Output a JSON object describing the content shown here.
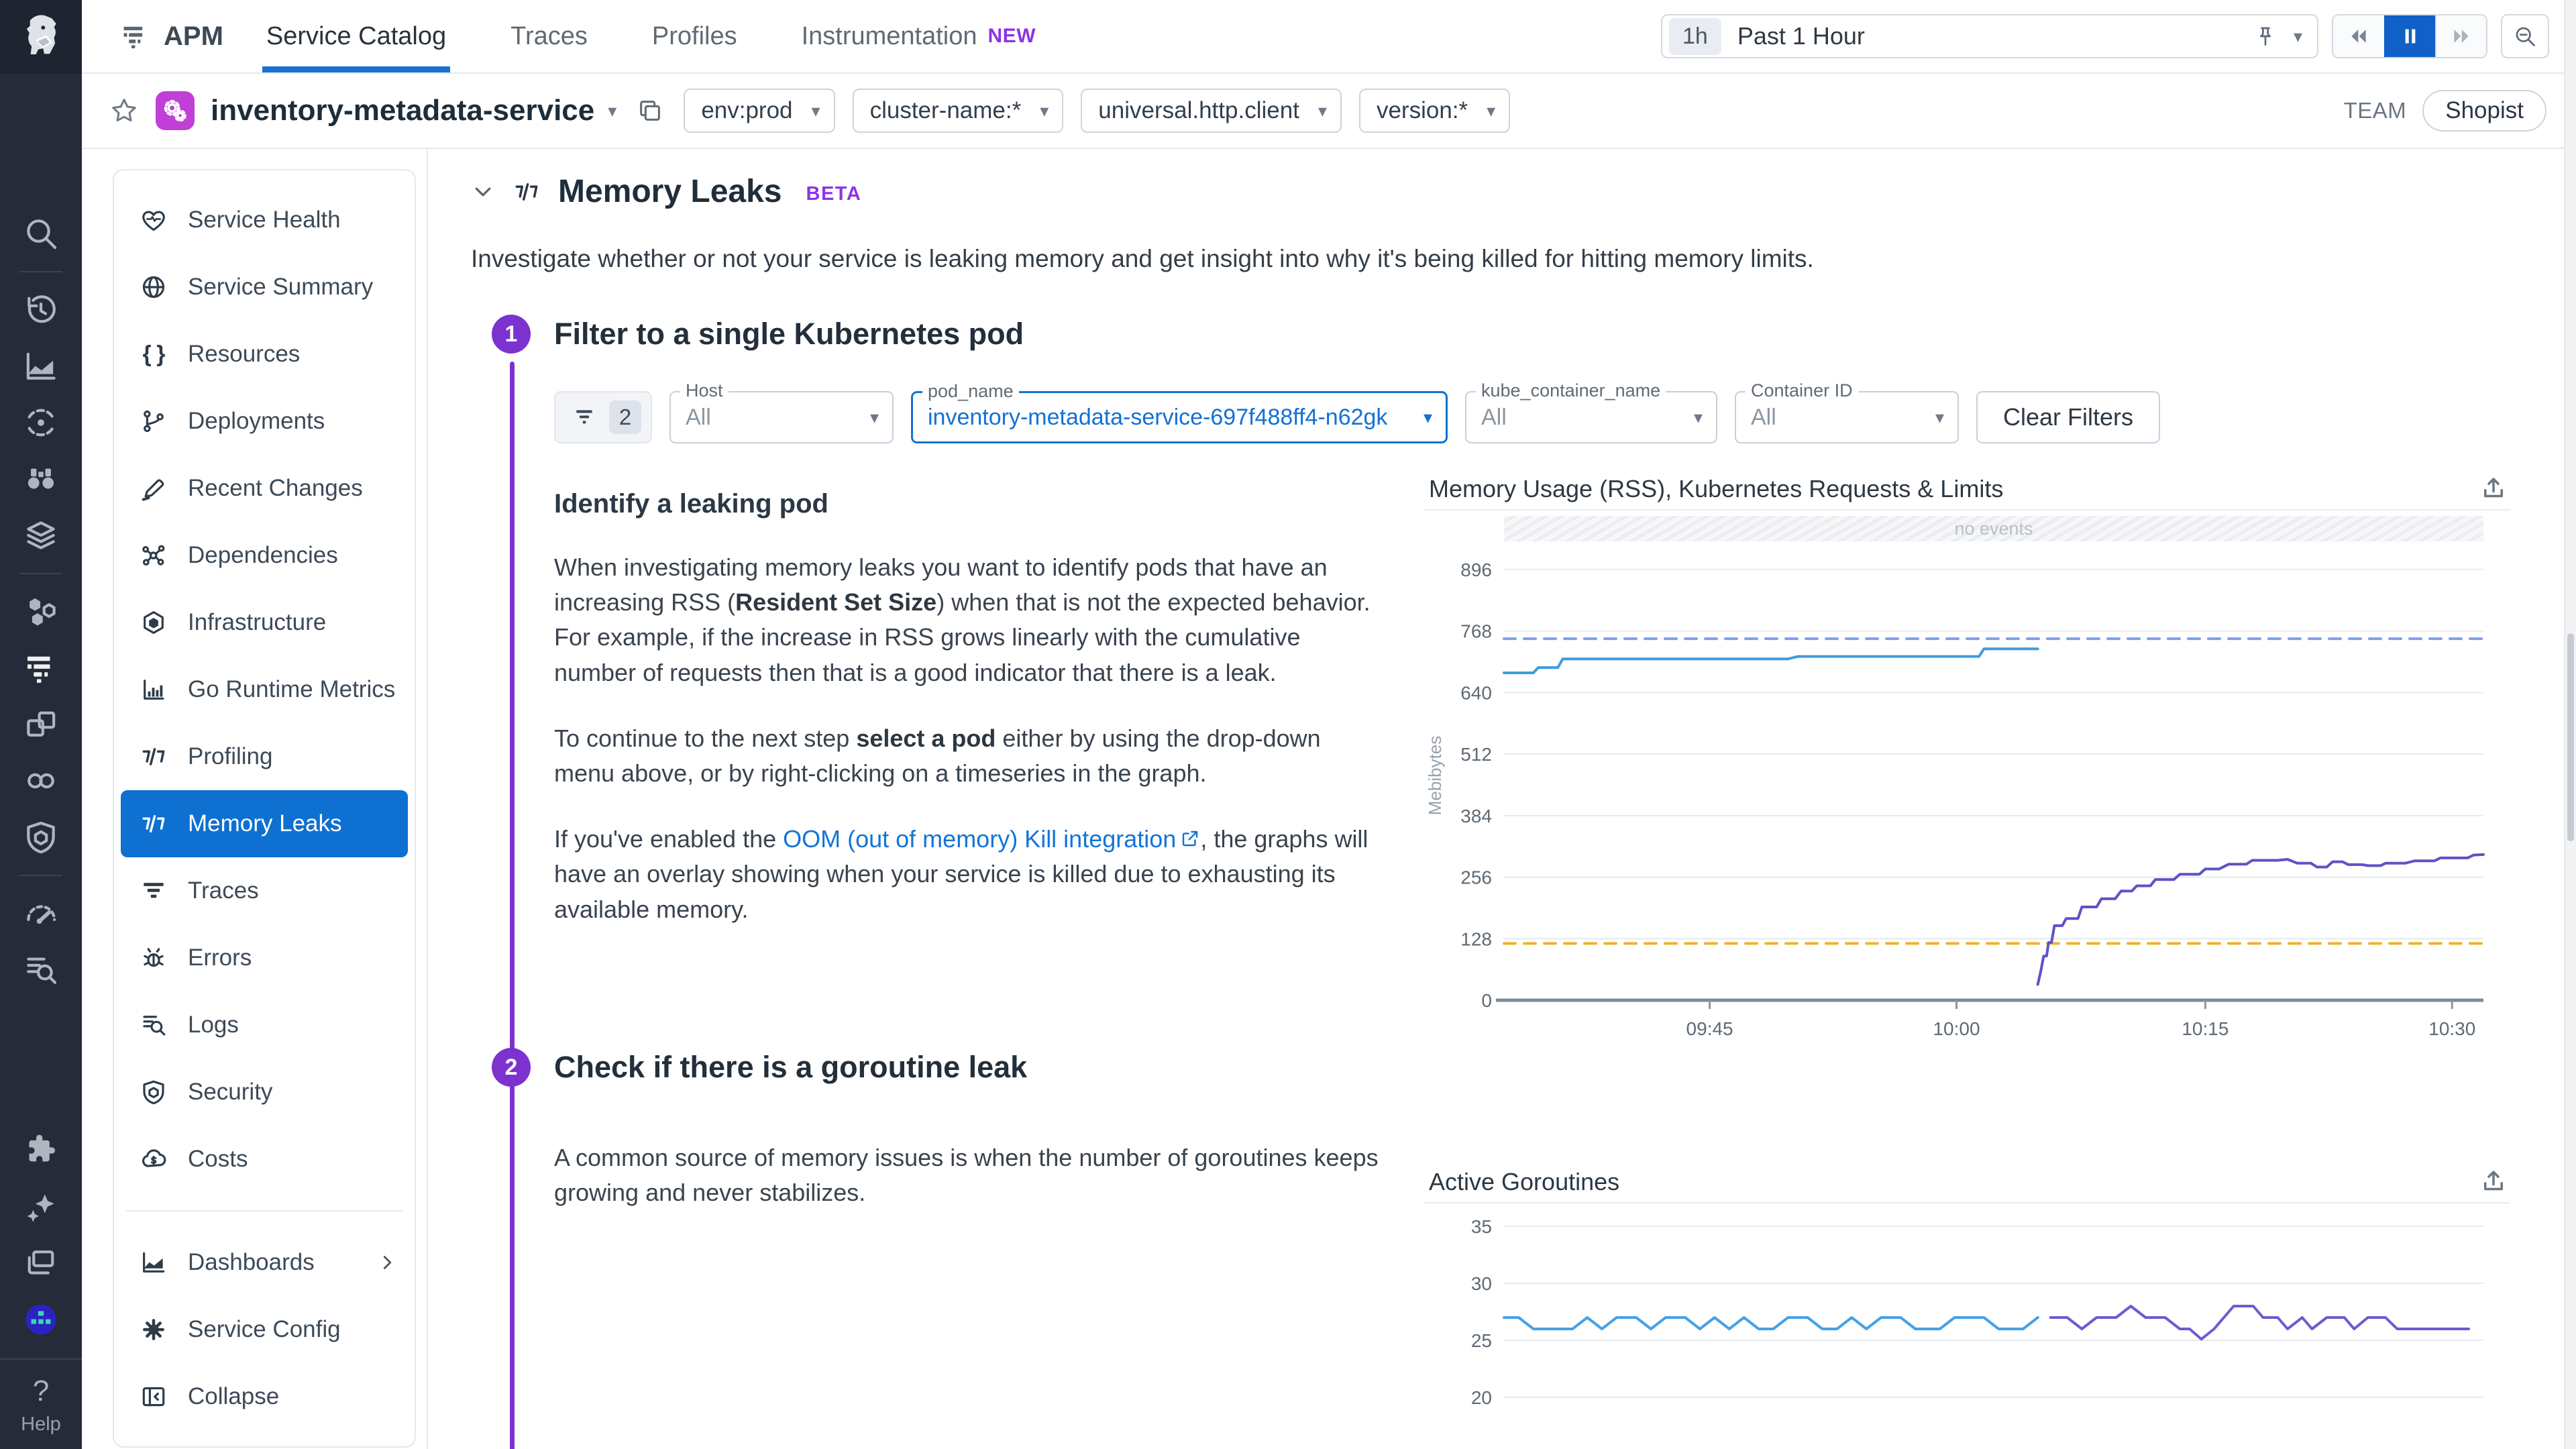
{
  "topnav": {
    "product": "APM",
    "tabs": [
      {
        "label": "Service Catalog",
        "active": true
      },
      {
        "label": "Traces",
        "active": false
      },
      {
        "label": "Profiles",
        "active": false
      },
      {
        "label": "Instrumentation",
        "active": false,
        "badge": "NEW"
      }
    ],
    "time_range": {
      "shortcut": "1h",
      "label": "Past 1 Hour"
    }
  },
  "rail": {
    "top": [
      {
        "icon": "search",
        "name": "search"
      },
      {
        "divider": true
      },
      {
        "icon": "history",
        "name": "history"
      },
      {
        "icon": "area",
        "name": "metrics"
      },
      {
        "icon": "ci",
        "name": "ci-visibility"
      },
      {
        "icon": "binoculars",
        "name": "watchdog"
      },
      {
        "icon": "layers",
        "name": "software-catalog"
      },
      {
        "divider": true
      },
      {
        "icon": "hexes",
        "name": "infrastructure"
      },
      {
        "icon": "apm",
        "name": "apm",
        "bright": true
      },
      {
        "icon": "windows",
        "name": "containers"
      },
      {
        "icon": "chain",
        "name": "service-links"
      },
      {
        "icon": "shield2",
        "name": "security"
      },
      {
        "divider": true
      },
      {
        "icon": "gauge",
        "name": "synthetics"
      },
      {
        "icon": "logsearch",
        "name": "log-management"
      }
    ],
    "bottom": [
      {
        "icon": "puzzle",
        "name": "integrations"
      },
      {
        "icon": "sparkles",
        "name": "bits-ai"
      },
      {
        "icon": "displays",
        "name": "displays"
      },
      {
        "icon": "avatar",
        "name": "user-avatar"
      }
    ],
    "help_label": "Help"
  },
  "servicebar": {
    "service_name": "inventory-metadata-service",
    "scope_pills": [
      "env:prod",
      "cluster-name:*",
      "universal.http.client",
      "version:*"
    ],
    "team_label": "TEAM",
    "team_name": "Shopist"
  },
  "sidebar": {
    "items": [
      {
        "label": "Service Health",
        "icon": "heart"
      },
      {
        "label": "Service Summary",
        "icon": "globe"
      },
      {
        "label": "Resources",
        "icon": "braces"
      },
      {
        "label": "Deployments",
        "icon": "branch"
      },
      {
        "label": "Recent Changes",
        "icon": "pencil"
      },
      {
        "label": "Dependencies",
        "icon": "network"
      },
      {
        "label": "Infrastructure",
        "icon": "hexbox"
      },
      {
        "label": "Go Runtime Metrics",
        "icon": "gobars"
      },
      {
        "label": "Profiling",
        "icon": "prof"
      },
      {
        "label": "Memory Leaks",
        "icon": "prof",
        "active": true
      },
      {
        "label": "Traces",
        "icon": "flame"
      },
      {
        "label": "Errors",
        "icon": "bug"
      },
      {
        "label": "Logs",
        "icon": "logsearch"
      },
      {
        "label": "Security",
        "icon": "shield2"
      },
      {
        "label": "Costs",
        "icon": "cloud"
      },
      {
        "divider": true
      },
      {
        "label": "Dashboards",
        "icon": "area",
        "chevron": true
      },
      {
        "label": "Service Config",
        "icon": "gear"
      },
      {
        "label": "Collapse",
        "icon": "collapse"
      }
    ]
  },
  "main": {
    "title": "Memory Leaks",
    "beta_badge": "BETA",
    "description": "Investigate whether or not your service is leaking memory and get insight into why it's being killed for hitting memory limits.",
    "steps": [
      {
        "number": "1",
        "heading": "Filter to a single Kubernetes pod"
      },
      {
        "number": "2",
        "heading": "Check if there is a goroutine leak"
      }
    ],
    "filters": {
      "count": "2",
      "dropdowns": [
        {
          "label": "Host",
          "value": "All",
          "active": false
        },
        {
          "label": "pod_name",
          "value": "inventory-metadata-service-697f488ff4-n62gk",
          "active": true
        },
        {
          "label": "kube_container_name",
          "value": "All",
          "active": false
        },
        {
          "label": "Container ID",
          "value": "All",
          "active": false
        }
      ],
      "clear_label": "Clear Filters"
    },
    "identify": {
      "subheading": "Identify a leaking pod",
      "paragraphs": [
        [
          {
            "t": "When investigating memory leaks you want to identify pods that have an increasing RSS ("
          },
          {
            "t": "Resident Set Size",
            "bold": true
          },
          {
            "t": ") when that is not the expected behavior. For example, if the increase in RSS grows linearly with the cumulative number of requests then that is a good indicator that there is a leak."
          }
        ],
        [
          {
            "t": "To continue to the next step "
          },
          {
            "t": "select a pod",
            "bold": true
          },
          {
            "t": " either by using the drop-down menu above, or by right-clicking on a timeseries in the graph."
          }
        ],
        [
          {
            "t": "If you've enabled the "
          },
          {
            "t": "OOM (out of memory) Kill integration",
            "link": true
          },
          {
            "t": ", the graphs will have an overlay showing when your service is killed due to exhausting its available memory."
          }
        ]
      ]
    },
    "goroutine_paragraph": "A common source of memory issues is when the number of goroutines keeps growing and never stabilizes."
  },
  "colors": {
    "accent_blue": "#1673d2",
    "active_nav_blue": "#0e70d1",
    "purple_step": "#7b32cf",
    "beta_purple": "#8e32e6",
    "service_tile": "#c13fd6",
    "limit_line": "#7f9fea",
    "request_line": "#f0b429",
    "rss_blue": "#3d9ce0",
    "rss_purple": "#5d52c7"
  },
  "chart_data": [
    {
      "type": "line",
      "name": "memory-usage",
      "title": "Memory Usage (RSS), Kubernetes Requests & Limits",
      "ylabel": "Mebibytes",
      "no_events_label": "no events",
      "ylim": [
        0,
        935
      ],
      "y_ticks": [
        896,
        768,
        640,
        512,
        384,
        256,
        128,
        0
      ],
      "x_ticks": [
        {
          "pos": 0.21,
          "label": "09:45"
        },
        {
          "pos": 0.462,
          "label": "10:00"
        },
        {
          "pos": 0.716,
          "label": "10:15"
        },
        {
          "pos": 0.968,
          "label": "10:30"
        }
      ],
      "series": [
        {
          "name": "memory-limit",
          "color": "#7f9fea",
          "dash": true,
          "width": 4,
          "points": [
            [
              0,
              752
            ],
            [
              1,
              752
            ]
          ]
        },
        {
          "name": "memory-request",
          "color": "#f0b429",
          "dash": true,
          "width": 4,
          "points": [
            [
              0,
              118
            ],
            [
              1,
              118
            ]
          ]
        },
        {
          "name": "rss-previous-pod",
          "color": "#3d9ce0",
          "dash": false,
          "width": 4,
          "points": [
            [
              0,
              681
            ],
            [
              0.03,
              681
            ],
            [
              0.035,
              692
            ],
            [
              0.055,
              692
            ],
            [
              0.06,
              710
            ],
            [
              0.29,
              710
            ],
            [
              0.3,
              715
            ],
            [
              0.485,
              715
            ],
            [
              0.49,
              731
            ],
            [
              0.545,
              731
            ]
          ]
        },
        {
          "name": "rss-selected-pod",
          "color": "#5d52c7",
          "dash": false,
          "width": 4,
          "points": [
            [
              0.545,
              33
            ],
            [
              0.548,
              60
            ],
            [
              0.551,
              92
            ],
            [
              0.554,
              92
            ],
            [
              0.556,
              120
            ],
            [
              0.559,
              120
            ],
            [
              0.562,
              155
            ],
            [
              0.57,
              155
            ],
            [
              0.574,
              170
            ],
            [
              0.586,
              170
            ],
            [
              0.59,
              194
            ],
            [
              0.605,
              194
            ],
            [
              0.61,
              211
            ],
            [
              0.624,
              211
            ],
            [
              0.63,
              227
            ],
            [
              0.641,
              227
            ],
            [
              0.646,
              238
            ],
            [
              0.66,
              238
            ],
            [
              0.665,
              251
            ],
            [
              0.684,
              251
            ],
            [
              0.69,
              262
            ],
            [
              0.71,
              262
            ],
            [
              0.716,
              273
            ],
            [
              0.73,
              273
            ],
            [
              0.74,
              283
            ],
            [
              0.758,
              283
            ],
            [
              0.764,
              291
            ],
            [
              0.79,
              291
            ],
            [
              0.8,
              293
            ],
            [
              0.81,
              285
            ],
            [
              0.824,
              285
            ],
            [
              0.83,
              277
            ],
            [
              0.84,
              277
            ],
            [
              0.846,
              288
            ],
            [
              0.856,
              288
            ],
            [
              0.862,
              282
            ],
            [
              0.876,
              282
            ],
            [
              0.882,
              280
            ],
            [
              0.895,
              280
            ],
            [
              0.9,
              285
            ],
            [
              0.92,
              285
            ],
            [
              0.93,
              290
            ],
            [
              0.95,
              290
            ],
            [
              0.956,
              296
            ],
            [
              0.984,
              296
            ],
            [
              0.99,
              302
            ],
            [
              1,
              303
            ]
          ]
        }
      ]
    },
    {
      "type": "line",
      "name": "active-goroutines",
      "title": "Active Goroutines",
      "ylim": [
        17,
        36.53
      ],
      "y_ticks": [
        35,
        30,
        25,
        20
      ],
      "x_ticks": [],
      "series": [
        {
          "name": "goroutines-previous-pod",
          "color": "#45a1e8",
          "dash": false,
          "width": 4,
          "points": [
            [
              0,
              27
            ],
            [
              0.015,
              27
            ],
            [
              0.03,
              26
            ],
            [
              0.07,
              26
            ],
            [
              0.085,
              27
            ],
            [
              0.1,
              26
            ],
            [
              0.115,
              27
            ],
            [
              0.135,
              27
            ],
            [
              0.15,
              26
            ],
            [
              0.165,
              27
            ],
            [
              0.185,
              27
            ],
            [
              0.2,
              26
            ],
            [
              0.215,
              27
            ],
            [
              0.23,
              26
            ],
            [
              0.245,
              27
            ],
            [
              0.26,
              26
            ],
            [
              0.275,
              26
            ],
            [
              0.29,
              27
            ],
            [
              0.31,
              27
            ],
            [
              0.325,
              26
            ],
            [
              0.34,
              26
            ],
            [
              0.355,
              27
            ],
            [
              0.37,
              26
            ],
            [
              0.385,
              27
            ],
            [
              0.405,
              27
            ],
            [
              0.42,
              26
            ],
            [
              0.445,
              26
            ],
            [
              0.46,
              27
            ],
            [
              0.49,
              27
            ],
            [
              0.505,
              26
            ],
            [
              0.53,
              26
            ],
            [
              0.545,
              27
            ]
          ]
        },
        {
          "name": "goroutines-selected-pod",
          "color": "#6c5bd2",
          "dash": false,
          "width": 4,
          "points": [
            [
              0.558,
              27
            ],
            [
              0.575,
              27
            ],
            [
              0.59,
              26
            ],
            [
              0.605,
              27
            ],
            [
              0.625,
              27
            ],
            [
              0.64,
              28
            ],
            [
              0.655,
              27
            ],
            [
              0.675,
              27
            ],
            [
              0.69,
              26
            ],
            [
              0.7,
              26
            ],
            [
              0.712,
              25.1
            ],
            [
              0.725,
              26
            ],
            [
              0.735,
              27
            ],
            [
              0.745,
              28
            ],
            [
              0.765,
              28
            ],
            [
              0.775,
              27
            ],
            [
              0.79,
              27
            ],
            [
              0.8,
              26
            ],
            [
              0.815,
              27
            ],
            [
              0.825,
              26
            ],
            [
              0.84,
              27
            ],
            [
              0.858,
              27
            ],
            [
              0.868,
              26
            ],
            [
              0.882,
              27
            ],
            [
              0.9,
              27
            ],
            [
              0.912,
              26
            ],
            [
              0.985,
              26
            ]
          ]
        }
      ]
    }
  ]
}
